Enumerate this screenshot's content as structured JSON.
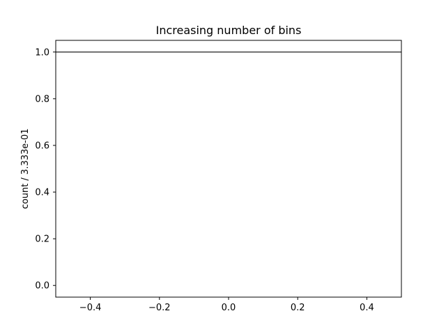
{
  "chart_data": {
    "type": "line",
    "title": "Increasing number of bins",
    "xlabel": "",
    "ylabel": "count / 3.333e-01",
    "xlim": [
      -0.5,
      0.5
    ],
    "ylim": [
      -0.05,
      1.05
    ],
    "x_ticks": [
      -0.4,
      -0.2,
      0.0,
      0.2,
      0.4
    ],
    "x_tick_labels": [
      "−0.4",
      "−0.2",
      "0.0",
      "0.2",
      "0.4"
    ],
    "y_ticks": [
      0.0,
      0.2,
      0.4,
      0.6,
      0.8,
      1.0
    ],
    "y_tick_labels": [
      "0.0",
      "0.2",
      "0.4",
      "0.6",
      "0.8",
      "1.0"
    ],
    "grid": false,
    "series": [
      {
        "x": [
          -0.5,
          0.5
        ],
        "y": [
          1.0,
          1.0
        ],
        "color": "#444444"
      }
    ]
  }
}
